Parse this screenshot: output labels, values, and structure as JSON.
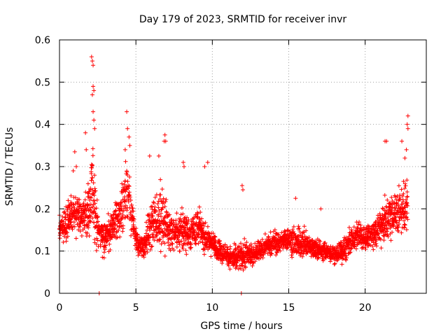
{
  "chart_data": {
    "type": "scatter",
    "title": "Day 179 of 2023, SRMTID for receiver invr",
    "xlabel": "GPS time / hours",
    "ylabel": "SRMTID / TECUs",
    "xlim": [
      0,
      24
    ],
    "ylim": [
      0,
      0.6
    ],
    "xticks": [
      0,
      5,
      10,
      15,
      20
    ],
    "yticks": [
      0,
      0.1,
      0.2,
      0.3,
      0.4,
      0.5,
      0.6
    ],
    "grid": true,
    "marker": "+",
    "series_color": "#ff0000",
    "envelope": {
      "x": [
        0,
        0.5,
        1,
        1.5,
        2,
        2.2,
        2.5,
        3,
        3.5,
        4,
        4.4,
        4.8,
        5,
        5.5,
        6,
        6.5,
        6.9,
        7.5,
        8,
        8.5,
        9,
        9.5,
        10,
        10.5,
        11,
        11.5,
        12,
        12.5,
        13,
        13.5,
        14,
        14.5,
        15,
        15.5,
        16,
        16.5,
        17,
        17.5,
        18,
        18.5,
        19,
        19.5,
        20,
        20.5,
        21,
        21.5,
        22,
        22.5,
        22.8
      ],
      "mean": [
        0.15,
        0.17,
        0.19,
        0.18,
        0.2,
        0.25,
        0.15,
        0.13,
        0.16,
        0.19,
        0.24,
        0.17,
        0.12,
        0.11,
        0.16,
        0.18,
        0.17,
        0.14,
        0.15,
        0.14,
        0.16,
        0.13,
        0.12,
        0.1,
        0.09,
        0.08,
        0.09,
        0.09,
        0.1,
        0.11,
        0.12,
        0.12,
        0.13,
        0.12,
        0.12,
        0.11,
        0.1,
        0.1,
        0.09,
        0.1,
        0.12,
        0.14,
        0.13,
        0.14,
        0.16,
        0.18,
        0.19,
        0.2,
        0.22
      ],
      "spread": [
        0.06,
        0.07,
        0.08,
        0.07,
        0.12,
        0.2,
        0.07,
        0.06,
        0.07,
        0.09,
        0.15,
        0.08,
        0.05,
        0.05,
        0.1,
        0.11,
        0.12,
        0.07,
        0.09,
        0.06,
        0.08,
        0.05,
        0.05,
        0.04,
        0.04,
        0.05,
        0.06,
        0.04,
        0.04,
        0.04,
        0.05,
        0.04,
        0.05,
        0.06,
        0.05,
        0.04,
        0.04,
        0.03,
        0.03,
        0.05,
        0.05,
        0.05,
        0.05,
        0.05,
        0.07,
        0.09,
        0.08,
        0.1,
        0.12
      ]
    },
    "peaks": [
      {
        "x": 2.1,
        "y": 0.56
      },
      {
        "x": 2.15,
        "y": 0.55
      },
      {
        "x": 2.2,
        "y": 0.54
      },
      {
        "x": 2.2,
        "y": 0.49
      },
      {
        "x": 2.25,
        "y": 0.48
      },
      {
        "x": 2.15,
        "y": 0.47
      },
      {
        "x": 2.2,
        "y": 0.43
      },
      {
        "x": 2.25,
        "y": 0.41
      },
      {
        "x": 2.3,
        "y": 0.39
      },
      {
        "x": 1.7,
        "y": 0.38
      },
      {
        "x": 1.75,
        "y": 0.34
      },
      {
        "x": 1.0,
        "y": 0.335
      },
      {
        "x": 4.4,
        "y": 0.43
      },
      {
        "x": 4.45,
        "y": 0.39
      },
      {
        "x": 4.55,
        "y": 0.37
      },
      {
        "x": 4.6,
        "y": 0.35
      },
      {
        "x": 4.3,
        "y": 0.34
      },
      {
        "x": 6.9,
        "y": 0.375
      },
      {
        "x": 6.85,
        "y": 0.36
      },
      {
        "x": 6.95,
        "y": 0.36
      },
      {
        "x": 5.9,
        "y": 0.325
      },
      {
        "x": 6.5,
        "y": 0.325
      },
      {
        "x": 8.1,
        "y": 0.31
      },
      {
        "x": 8.15,
        "y": 0.3
      },
      {
        "x": 9.7,
        "y": 0.31
      },
      {
        "x": 9.5,
        "y": 0.3
      },
      {
        "x": 11.95,
        "y": 0.255
      },
      {
        "x": 12.0,
        "y": 0.245
      },
      {
        "x": 15.45,
        "y": 0.225
      },
      {
        "x": 17.1,
        "y": 0.2
      },
      {
        "x": 21.3,
        "y": 0.36
      },
      {
        "x": 21.4,
        "y": 0.36
      },
      {
        "x": 22.4,
        "y": 0.36
      },
      {
        "x": 22.8,
        "y": 0.42
      },
      {
        "x": 22.75,
        "y": 0.4
      },
      {
        "x": 22.8,
        "y": 0.39
      },
      {
        "x": 22.7,
        "y": 0.34
      },
      {
        "x": 22.6,
        "y": 0.32
      },
      {
        "x": 0.9,
        "y": 0.29
      },
      {
        "x": 1.1,
        "y": 0.3
      },
      {
        "x": 2.6,
        "y": 0.0
      },
      {
        "x": 11.9,
        "y": 0.0
      }
    ]
  }
}
